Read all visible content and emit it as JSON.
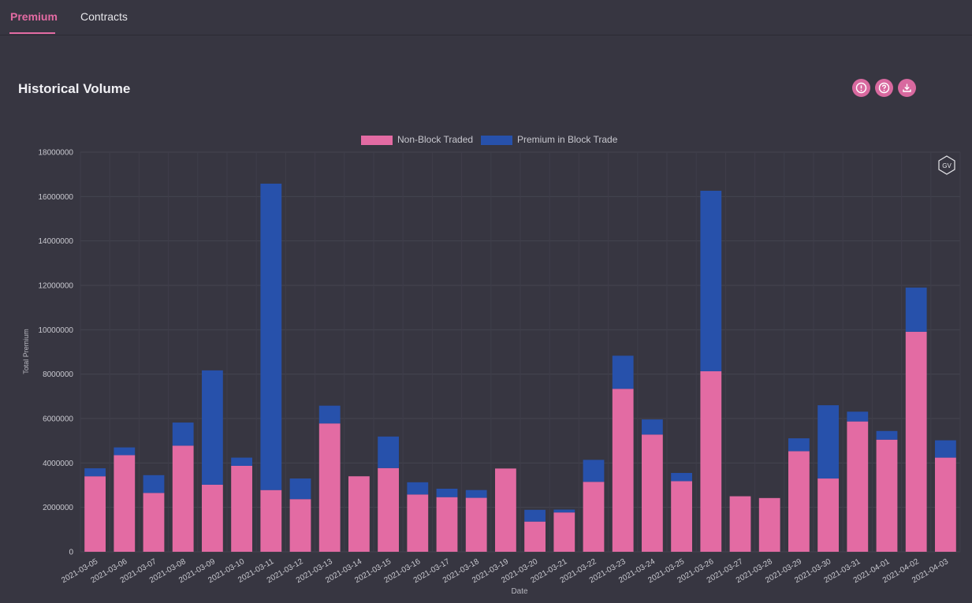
{
  "tabs": [
    {
      "label": "Premium",
      "active": true
    },
    {
      "label": "Contracts",
      "active": false
    }
  ],
  "section": {
    "title": "Historical Volume"
  },
  "toolbar": {
    "icons": [
      "info-icon",
      "help-icon",
      "download-icon"
    ]
  },
  "watermark": {
    "text": "GV"
  },
  "colors": {
    "accent": "#e36ba3",
    "non_block": "#e36ba3",
    "block": "#2751ab",
    "background": "#373641"
  },
  "chart_data": {
    "type": "bar",
    "stacked": true,
    "xlabel": "Date",
    "ylabel": "Total Premium",
    "ylim": [
      0,
      18000000
    ],
    "yticks": [
      0,
      2000000,
      4000000,
      6000000,
      8000000,
      10000000,
      12000000,
      14000000,
      16000000,
      18000000
    ],
    "legend_position": "top-center",
    "grid": true,
    "categories": [
      "2021-03-05",
      "2021-03-06",
      "2021-03-07",
      "2021-03-08",
      "2021-03-09",
      "2021-03-10",
      "2021-03-11",
      "2021-03-12",
      "2021-03-13",
      "2021-03-14",
      "2021-03-15",
      "2021-03-16",
      "2021-03-17",
      "2021-03-18",
      "2021-03-19",
      "2021-03-20",
      "2021-03-21",
      "2021-03-22",
      "2021-03-23",
      "2021-03-24",
      "2021-03-25",
      "2021-03-26",
      "2021-03-27",
      "2021-03-28",
      "2021-03-29",
      "2021-03-30",
      "2021-03-31",
      "2021-04-01",
      "2021-04-02",
      "2021-04-03"
    ],
    "series": [
      {
        "name": "Non-Block Traded",
        "values": [
          3400000,
          4350000,
          2650000,
          4780000,
          3020000,
          3870000,
          2780000,
          2370000,
          5780000,
          3400000,
          3770000,
          2580000,
          2460000,
          2430000,
          3750000,
          1360000,
          1770000,
          3150000,
          7340000,
          5280000,
          3180000,
          8130000,
          2500000,
          2420000,
          4530000,
          3300000,
          5870000,
          5050000,
          9910000,
          4240000
        ]
      },
      {
        "name": "Premium in Block Trade",
        "values": [
          360000,
          350000,
          800000,
          1040000,
          5150000,
          370000,
          13800000,
          930000,
          800000,
          0,
          1420000,
          550000,
          380000,
          350000,
          0,
          530000,
          130000,
          990000,
          1490000,
          680000,
          370000,
          8130000,
          0,
          0,
          580000,
          3300000,
          440000,
          390000,
          1990000,
          780000
        ]
      }
    ]
  }
}
